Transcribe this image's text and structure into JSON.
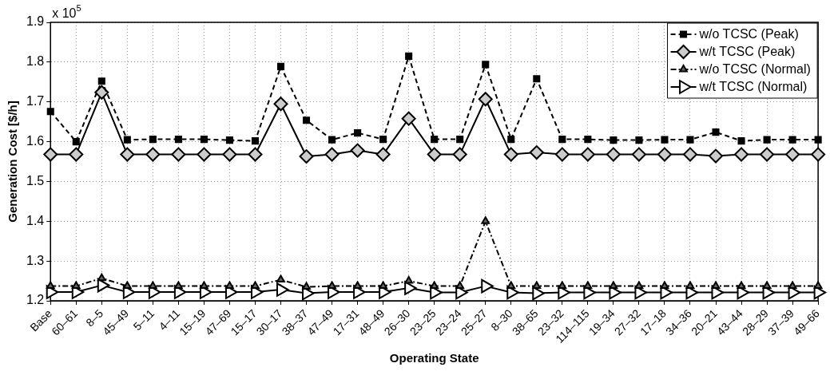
{
  "chart_data": {
    "type": "line",
    "xlabel": "Operating State",
    "ylabel": "Generation Cost [$/h]",
    "annotations": [
      "x 10$^{5}$"
    ],
    "categories": [
      "Base",
      "60–61",
      "8–5",
      "45–49",
      "5–11",
      "4–11",
      "15–19",
      "47–69",
      "15–17",
      "30–17",
      "38–37",
      "47–49",
      "17–31",
      "48–49",
      "26–30",
      "23–25",
      "23–24",
      "25–27",
      "8–30",
      "38–65",
      "23–32",
      "114–115",
      "19–34",
      "27–32",
      "17–18",
      "34–36",
      "20–21",
      "43–44",
      "28–29",
      "37–39",
      "49–66"
    ],
    "series": [
      {
        "name": "w/o TCSC (Peak)",
        "color": "#000000",
        "marker": "square",
        "line_style": "dashed",
        "values": [
          1.676,
          1.6,
          1.752,
          1.605,
          1.606,
          1.606,
          1.606,
          1.604,
          1.602,
          1.789,
          1.654,
          1.605,
          1.622,
          1.606,
          1.815,
          1.606,
          1.606,
          1.794,
          1.606,
          1.758,
          1.606,
          1.606,
          1.604,
          1.604,
          1.605,
          1.605,
          1.624,
          1.602,
          1.605,
          1.605,
          1.605
        ]
      },
      {
        "name": "w/t TCSC (Peak)",
        "color": "#cccccc",
        "marker": "diamond",
        "line_style": "solid",
        "values": [
          1.568,
          1.568,
          1.724,
          1.568,
          1.568,
          1.568,
          1.568,
          1.568,
          1.568,
          1.695,
          1.563,
          1.568,
          1.578,
          1.568,
          1.658,
          1.568,
          1.568,
          1.707,
          1.568,
          1.573,
          1.568,
          1.568,
          1.568,
          1.568,
          1.568,
          1.568,
          1.564,
          1.568,
          1.568,
          1.568,
          1.568
        ]
      },
      {
        "name": "w/o TCSC (Normal)",
        "color": "#666666",
        "marker": "triangle",
        "line_style": "dashdot",
        "values": [
          1.237,
          1.237,
          1.257,
          1.237,
          1.237,
          1.237,
          1.237,
          1.237,
          1.237,
          1.253,
          1.235,
          1.237,
          1.237,
          1.237,
          1.25,
          1.237,
          1.237,
          1.4,
          1.237,
          1.237,
          1.237,
          1.237,
          1.237,
          1.237,
          1.237,
          1.237,
          1.237,
          1.237,
          1.237,
          1.237,
          1.237
        ]
      },
      {
        "name": "w/t TCSC (Normal)",
        "color": "#ffffff",
        "marker": "triangle-right",
        "line_style": "solid",
        "values": [
          1.222,
          1.222,
          1.239,
          1.222,
          1.222,
          1.222,
          1.222,
          1.222,
          1.222,
          1.228,
          1.219,
          1.222,
          1.222,
          1.222,
          1.232,
          1.221,
          1.221,
          1.237,
          1.221,
          1.219,
          1.221,
          1.221,
          1.221,
          1.221,
          1.221,
          1.221,
          1.221,
          1.221,
          1.221,
          1.221,
          1.221
        ]
      }
    ],
    "ylim": [
      1.2,
      1.9
    ],
    "yticks": [
      1.2,
      1.3,
      1.4,
      1.5,
      1.6,
      1.7,
      1.8,
      1.9
    ],
    "grid": true,
    "legend": "top right"
  }
}
